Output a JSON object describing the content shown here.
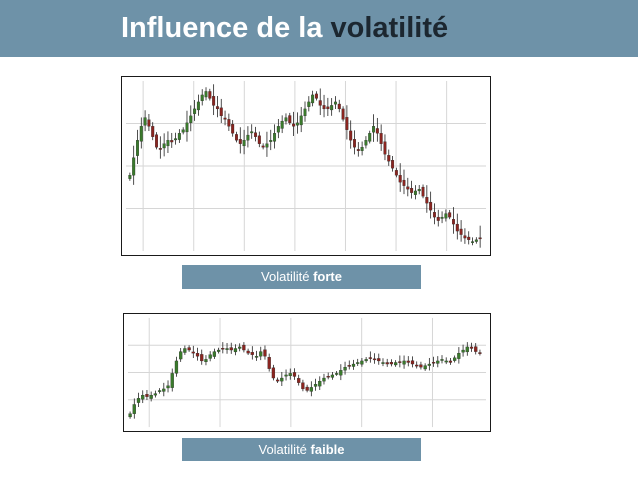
{
  "title": {
    "part1": "Influence de la ",
    "part2": "volatilité"
  },
  "colors": {
    "title_bar": "#6e92a8",
    "title_accent": "#1c2730",
    "candle_up": "#3a7a2c",
    "candle_down": "#8a2520",
    "grid": "#d6d6d6"
  },
  "chart_high": {
    "caption_prefix": "Volatilité ",
    "caption_strong": "forte"
  },
  "chart_low": {
    "caption_prefix": "Volatilité ",
    "caption_strong": "faible"
  },
  "chart_data": [
    {
      "type": "candlestick",
      "volatility": "high",
      "trend": "rising then strongly falling",
      "grid": true,
      "close": [
        42,
        52,
        62,
        70,
        75,
        70,
        64,
        58,
        57,
        60,
        62,
        61,
        63,
        66,
        68,
        72,
        76,
        80,
        84,
        88,
        90,
        86,
        82,
        80,
        76,
        74,
        70,
        66,
        62,
        60,
        62,
        65,
        67,
        64,
        60,
        58,
        60,
        62,
        66,
        70,
        73,
        75,
        72,
        70,
        72,
        76,
        80,
        84,
        88,
        86,
        82,
        80,
        80,
        82,
        84,
        80,
        74,
        68,
        62,
        58,
        56,
        58,
        62,
        66,
        70,
        66,
        60,
        54,
        50,
        46,
        42,
        38,
        36,
        34,
        32,
        33,
        34,
        30,
        26,
        22,
        18,
        16,
        18,
        20,
        18,
        14,
        10,
        8,
        6,
        5,
        4,
        5,
        6
      ]
    },
    {
      "type": "candlestick",
      "volatility": "low",
      "trend": "range-bound",
      "grid": true,
      "close": [
        18,
        24,
        28,
        30,
        29,
        30,
        31,
        33,
        34,
        36,
        44,
        52,
        58,
        60,
        59,
        57,
        55,
        52,
        53,
        56,
        58,
        59,
        60,
        60,
        59,
        60,
        61,
        59,
        57,
        56,
        55,
        58,
        55,
        47,
        41,
        39,
        41,
        43,
        44,
        42,
        38,
        34,
        33,
        35,
        37,
        39,
        41,
        42,
        43,
        44,
        46,
        48,
        49,
        50,
        51,
        52,
        53,
        54,
        53,
        52,
        51,
        50,
        50,
        51,
        51,
        52,
        51,
        50,
        49,
        48,
        49,
        50,
        51,
        52,
        53,
        52,
        51,
        54,
        57,
        59,
        61,
        60,
        58,
        57
      ]
    }
  ]
}
